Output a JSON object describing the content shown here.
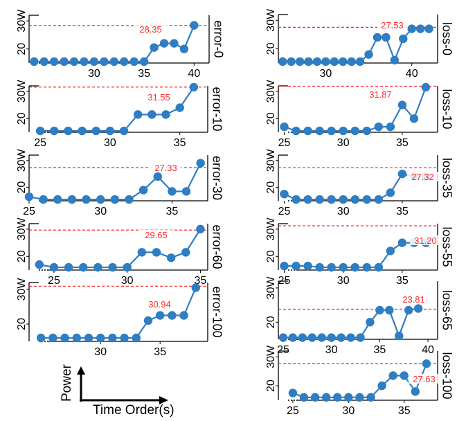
{
  "figure": {
    "axis_hint": {
      "y": "Power",
      "x": "Time Order(s)"
    }
  },
  "chart_data": [
    {
      "id": "error-0",
      "type": "line",
      "side_label": "error-0",
      "ytick_labels": [
        "30W",
        "20"
      ],
      "yticks": [
        30,
        20
      ],
      "ylim": [
        15,
        32
      ],
      "xlim": [
        23.5,
        41.5
      ],
      "xticks": [
        30,
        35,
        40
      ],
      "threshold": 28.35,
      "threshold_label": "28.35",
      "x": [
        24,
        25,
        26,
        27,
        28,
        29,
        30,
        31,
        32,
        33,
        34,
        35,
        36,
        37,
        38,
        39,
        40
      ],
      "y": [
        15.5,
        15.5,
        15.5,
        15.5,
        15.5,
        15.5,
        15.5,
        15.5,
        15.5,
        15.5,
        15.5,
        15.5,
        20.5,
        22,
        22,
        20,
        28.4
      ]
    },
    {
      "id": "loss-0",
      "type": "line",
      "side_label": "loss-0",
      "ytick_labels": [
        "30W",
        "20"
      ],
      "yticks": [
        30,
        20
      ],
      "ylim": [
        15,
        32
      ],
      "xlim": [
        24.5,
        43
      ],
      "xticks": [
        30,
        40
      ],
      "threshold": 27.53,
      "threshold_label": "27.53",
      "x": [
        25,
        26,
        27,
        28,
        29,
        30,
        31,
        32,
        33,
        34,
        35,
        36,
        37,
        38,
        39,
        40,
        41,
        42
      ],
      "y": [
        15.5,
        15.5,
        15.5,
        15.5,
        15.5,
        15.5,
        15.5,
        15.5,
        15.5,
        15.5,
        18,
        24,
        24,
        16,
        23.5,
        27,
        27,
        27
      ]
    },
    {
      "id": "error-10",
      "type": "line",
      "side_label": "error-10",
      "ytick_labels": [
        "30W",
        "20"
      ],
      "yticks": [
        30,
        20
      ],
      "ylim": [
        15,
        32
      ],
      "xlim": [
        24.2,
        37
      ],
      "xticks": [
        25,
        30,
        35
      ],
      "threshold": 31.55,
      "threshold_label": "31.55",
      "x": [
        25,
        26,
        27,
        28,
        29,
        30,
        31,
        32,
        33,
        34,
        35,
        36
      ],
      "y": [
        15.5,
        15.5,
        15.5,
        15.5,
        15.5,
        15.5,
        15.5,
        21.5,
        21.5,
        21.5,
        24,
        31.5
      ]
    },
    {
      "id": "loss-10",
      "type": "line",
      "side_label": "loss-10",
      "ytick_labels": [
        "30W",
        "20"
      ],
      "yticks": [
        30,
        20
      ],
      "ylim": [
        15,
        32
      ],
      "xlim": [
        24.5,
        38
      ],
      "xticks": [
        25,
        30,
        35
      ],
      "threshold": 31.87,
      "threshold_label": "31.87",
      "x": [
        25,
        26,
        27,
        28,
        29,
        30,
        31,
        32,
        33,
        34,
        35,
        36,
        37
      ],
      "y": [
        17,
        15.5,
        15.5,
        15.5,
        15.5,
        15.5,
        15.5,
        15.5,
        17,
        17,
        25,
        20,
        31.5
      ]
    },
    {
      "id": "error-30",
      "type": "line",
      "side_label": "error-30",
      "ytick_labels": [
        "30W",
        "20"
      ],
      "yticks": [
        30,
        20
      ],
      "ylim": [
        15,
        32
      ],
      "xlim": [
        25,
        37.5
      ],
      "xticks": [
        25,
        30,
        35
      ],
      "threshold": 27.33,
      "threshold_label": "27.33",
      "x": [
        25,
        26,
        27,
        28,
        29,
        30,
        31,
        32,
        33,
        34,
        35,
        36,
        37
      ],
      "y": [
        16.5,
        15.5,
        15.5,
        15.5,
        15.5,
        15.5,
        15.5,
        15.5,
        19,
        24,
        18.5,
        18.5,
        29
      ]
    },
    {
      "id": "loss-35",
      "type": "line",
      "side_label": "loss-35",
      "ytick_labels": [
        "30W",
        "20"
      ],
      "yticks": [
        30,
        20
      ],
      "ylim": [
        15,
        32
      ],
      "xlim": [
        24.5,
        38
      ],
      "xticks": [
        25,
        30,
        35
      ],
      "threshold": 27.32,
      "threshold_label": "27.32",
      "x": [
        25,
        26,
        27,
        28,
        29,
        30,
        31,
        32,
        33,
        34,
        35,
        36,
        37
      ],
      "y": [
        17.5,
        15.5,
        15.5,
        15.5,
        15.5,
        15.5,
        15.5,
        15.5,
        15.5,
        18,
        25,
        24,
        24
      ]
    },
    {
      "id": "error-60",
      "type": "line",
      "side_label": "error-60",
      "ytick_labels": [
        "30W",
        "20"
      ],
      "yticks": [
        30,
        20
      ],
      "ylim": [
        15,
        32
      ],
      "xlim": [
        23.3,
        35.5
      ],
      "xticks": [
        25,
        30,
        35
      ],
      "threshold": 29.65,
      "threshold_label": "29.65",
      "x": [
        24,
        25,
        26,
        27,
        28,
        29,
        30,
        31,
        32,
        33,
        34,
        35
      ],
      "y": [
        17,
        16,
        16,
        16,
        16,
        16,
        16,
        21.5,
        21.5,
        19.5,
        21.5,
        30
      ]
    },
    {
      "id": "loss-55",
      "type": "line",
      "side_label": "loss-55",
      "ytick_labels": [
        "30W",
        "20"
      ],
      "yticks": [
        30,
        20
      ],
      "ylim": [
        15,
        32
      ],
      "xlim": [
        24.5,
        38
      ],
      "xticks": [
        25,
        30,
        35
      ],
      "threshold": 31.2,
      "threshold_label": "31.20",
      "x": [
        25,
        26,
        27,
        28,
        29,
        30,
        31,
        32,
        33,
        34,
        35,
        36,
        37
      ],
      "y": [
        16.5,
        16.5,
        16.5,
        16,
        16,
        16,
        16,
        16,
        16,
        22,
        25,
        25,
        25
      ]
    },
    {
      "id": "error-100",
      "type": "line",
      "side_label": "error-100",
      "ytick_labels": [
        "30W",
        "20"
      ],
      "yticks": [
        30,
        20
      ],
      "ylim": [
        15,
        32
      ],
      "xlim": [
        24,
        39
      ],
      "xticks": [
        30,
        35
      ],
      "threshold": 30.94,
      "threshold_label": "30.94",
      "x": [
        25,
        26,
        27,
        28,
        29,
        30,
        31,
        32,
        33,
        34,
        35,
        36,
        37,
        38
      ],
      "y": [
        16,
        16,
        16,
        16,
        16,
        16,
        16,
        16,
        16,
        21,
        22.5,
        22.5,
        22.5,
        30.5
      ]
    },
    {
      "id": "loss-65",
      "type": "line",
      "side_label": "loss-65",
      "ytick_labels": [
        "30W",
        "20"
      ],
      "yticks": [
        30,
        20
      ],
      "ylim": [
        15,
        32
      ],
      "xlim": [
        24.5,
        41
      ],
      "xticks": [
        25,
        30,
        35,
        40
      ],
      "threshold": 23.81,
      "threshold_label": "23.81",
      "x": [
        25,
        26,
        27,
        28,
        29,
        30,
        31,
        32,
        33,
        34,
        35,
        36,
        37,
        38,
        39
      ],
      "y": [
        15.5,
        15.5,
        15.5,
        15.5,
        15.5,
        15.5,
        15.5,
        15.5,
        15.5,
        20,
        23.5,
        23.5,
        16,
        23.5,
        24
      ]
    },
    {
      "id": "loss-100",
      "type": "line",
      "side_label": "loss-100",
      "ytick_labels": [
        "30W",
        "20"
      ],
      "yticks": [
        30,
        20
      ],
      "ylim": [
        15,
        32
      ],
      "xlim": [
        23.7,
        38
      ],
      "xticks": [
        25,
        30,
        35
      ],
      "threshold": 27.63,
      "threshold_label": "27.63",
      "x": [
        25,
        26,
        27,
        28,
        29,
        30,
        31,
        32,
        33,
        34,
        35,
        36,
        37
      ],
      "y": [
        17.5,
        16,
        16,
        16,
        16,
        16,
        16,
        16,
        20,
        23.5,
        23.5,
        18,
        27.63
      ]
    }
  ]
}
